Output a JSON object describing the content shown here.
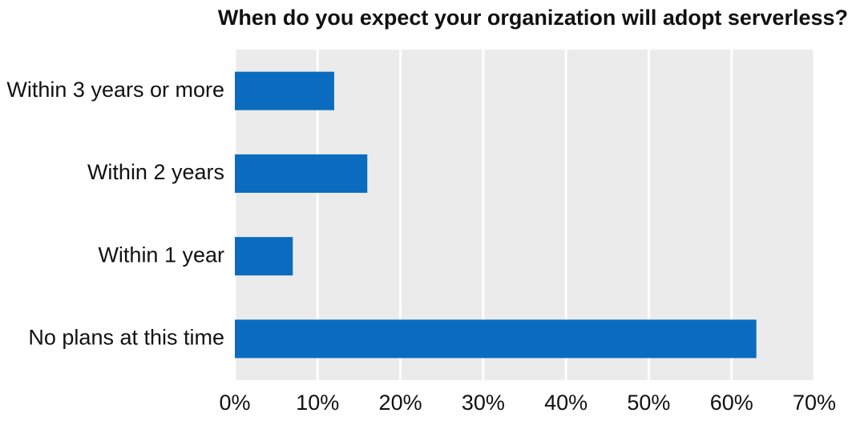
{
  "chart_data": {
    "type": "barh",
    "title": "When do you expect your organization will adopt serverless?",
    "categories": [
      "Within 3 years or more",
      "Within 2 years",
      "Within 1 year",
      "No plans at this time"
    ],
    "values": [
      12,
      16,
      7,
      63
    ],
    "color": "#0b6cbf",
    "xlim": [
      0,
      70
    ],
    "xticks": [
      {
        "value": 0,
        "label": "0%"
      },
      {
        "value": 10,
        "label": "10%"
      },
      {
        "value": 20,
        "label": "20%"
      },
      {
        "value": 30,
        "label": "30%"
      },
      {
        "value": 40,
        "label": "40%"
      },
      {
        "value": 50,
        "label": "50%"
      },
      {
        "value": 60,
        "label": "60%"
      },
      {
        "value": 70,
        "label": "70%"
      }
    ],
    "grid": true
  }
}
